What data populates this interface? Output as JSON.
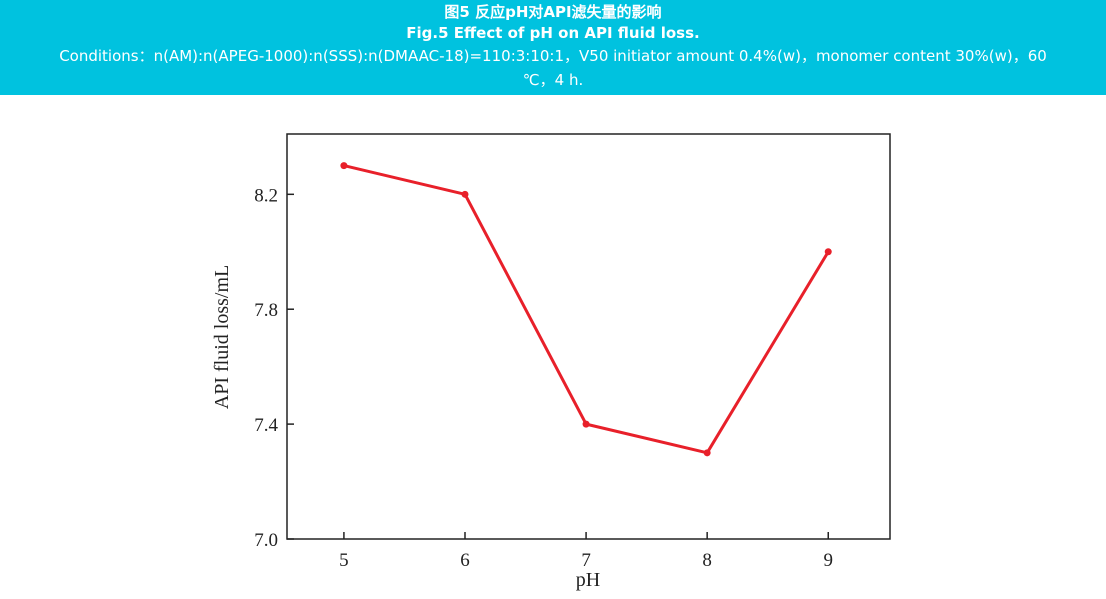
{
  "caption": {
    "title_cn": "图5 反应pH对API滤失量的影响",
    "title_en": "Fig.5 Effect of pH on API fluid loss.",
    "conditions_line1": "Conditions：n(AM):n(APEG-1000):n(SSS):n(DMAAC-18)=110:3:10:1，V50 initiator amount 0.4%(w)，monomer content 30%(w)，60",
    "conditions_line2": "℃，4 h.",
    "background_color": "#00c2df"
  },
  "chart_data": {
    "type": "line",
    "title": "",
    "xlabel": "pH",
    "ylabel": "API fluid loss/mL",
    "x": [
      5,
      6,
      7,
      8,
      9
    ],
    "series": [
      {
        "values": [
          8.3,
          8.2,
          7.4,
          7.3,
          8.0
        ],
        "color": "#e8202a"
      }
    ],
    "xlim": [
      4.53,
      9.51
    ],
    "ylim": [
      7.0,
      8.41
    ],
    "xticks": [
      "5",
      "6",
      "7",
      "8",
      "9"
    ],
    "yticks": [
      "7.0",
      "7.4",
      "7.8",
      "8.2"
    ],
    "grid": false,
    "markers": true
  }
}
